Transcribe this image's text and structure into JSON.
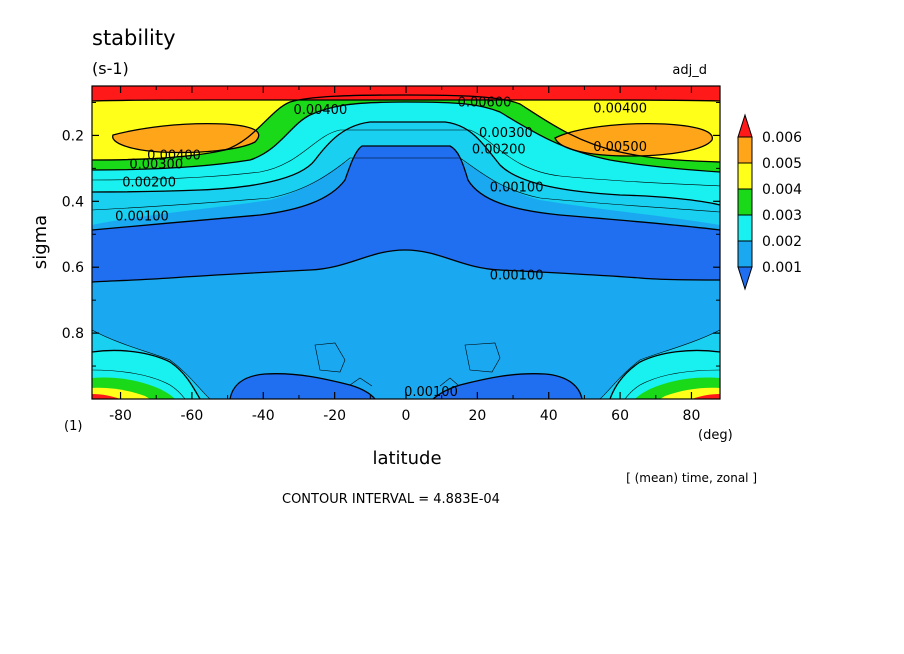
{
  "chart_data": {
    "type": "contour",
    "title": "stability",
    "units": "(s-1)",
    "run_label": "adj_d",
    "xlabel": "latitude",
    "x_unit": "(deg)",
    "ylabel": "sigma",
    "y_unit": "(1)",
    "xlim": [
      -88,
      88
    ],
    "ylim": [
      1.0,
      0.05
    ],
    "xticks": [
      -80,
      -60,
      -40,
      -20,
      0,
      20,
      40,
      60,
      80
    ],
    "xtick_labels": [
      "-80",
      "-60",
      "-40",
      "-20",
      "0",
      "20",
      "40",
      "60",
      "80"
    ],
    "yticks": [
      0.2,
      0.4,
      0.6,
      0.8
    ],
    "ytick_labels": [
      "0.2",
      "0.4",
      "0.6",
      "0.8"
    ],
    "averaging_note": "[ (mean) time, zonal ]",
    "contour_interval_text": "CONTOUR INTERVAL = 4.883E-04",
    "colorbar": {
      "levels": [
        0.001,
        0.002,
        0.003,
        0.004,
        0.005,
        0.006
      ],
      "labels": [
        "0.001",
        "0.002",
        "0.003",
        "0.004",
        "0.005",
        "0.006"
      ],
      "colors": [
        "#1f6ff0",
        "#1aa9f0",
        "#19f0f0",
        "#19d919",
        "#ffff1a",
        "#ffa519",
        "#ff1919"
      ],
      "extends": "both"
    },
    "contour_labels": [
      {
        "text": "0.00400",
        "lat": -24,
        "sigma": 0.12
      },
      {
        "text": "0.00600",
        "lat": 22,
        "sigma": 0.097
      },
      {
        "text": "0.00400",
        "lat": 60,
        "sigma": 0.115
      },
      {
        "text": "0.00400",
        "lat": -65,
        "sigma": 0.258
      },
      {
        "text": "0.00300",
        "lat": -70,
        "sigma": 0.285
      },
      {
        "text": "0.00200",
        "lat": -72,
        "sigma": 0.34
      },
      {
        "text": "0.00500",
        "lat": 60,
        "sigma": 0.232
      },
      {
        "text": "0.00300",
        "lat": 28,
        "sigma": 0.19
      },
      {
        "text": "0.00200",
        "lat": 26,
        "sigma": 0.24
      },
      {
        "text": "0.00100",
        "lat": 31,
        "sigma": 0.355
      },
      {
        "text": "0.00100",
        "lat": -74,
        "sigma": 0.443
      },
      {
        "text": "0.00100",
        "lat": 31,
        "sigma": 0.622
      },
      {
        "text": "0.00100",
        "lat": 7,
        "sigma": 0.975
      }
    ]
  }
}
